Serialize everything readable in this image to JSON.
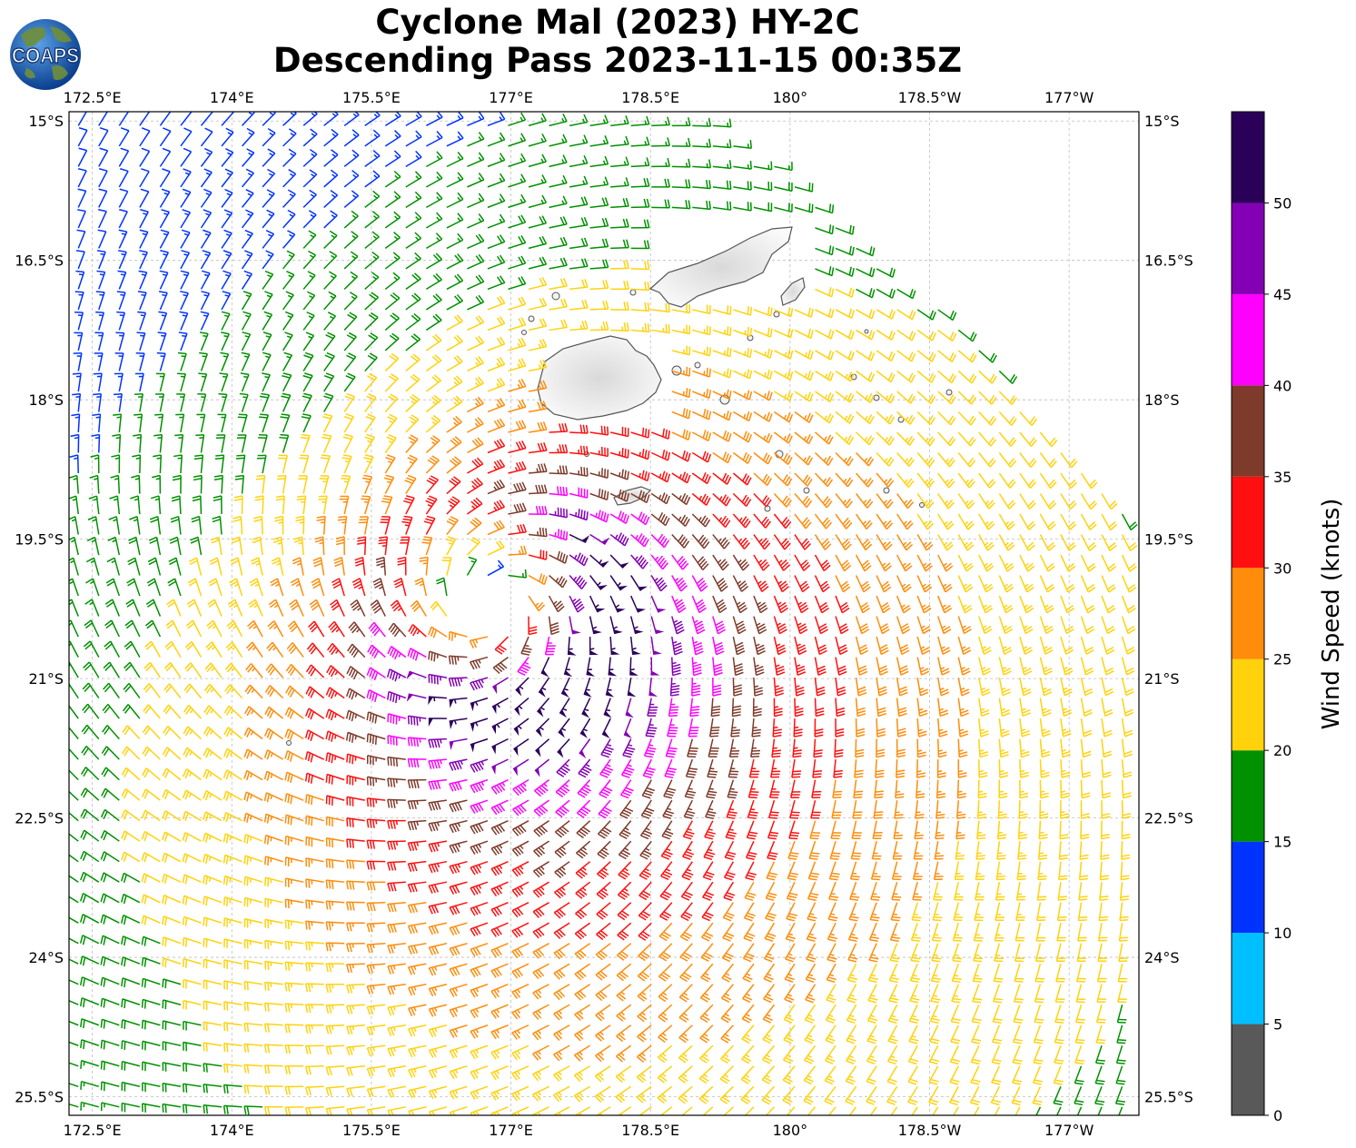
{
  "title": {
    "line1": "Cyclone Mal (2023) HY-2C",
    "line2": "Descending Pass 2023-11-15 00:35Z"
  },
  "logo": {
    "text": "COAPS",
    "icon": "globe-icon"
  },
  "map": {
    "extent": {
      "lon_min": 172.25,
      "lon_max": 183.75,
      "lat_min": -25.7,
      "lat_max": -14.9
    },
    "lon_ticks": [
      {
        "value": 172.5,
        "label": "172.5°E"
      },
      {
        "value": 174.0,
        "label": "174°E"
      },
      {
        "value": 175.5,
        "label": "175.5°E"
      },
      {
        "value": 177.0,
        "label": "177°E"
      },
      {
        "value": 178.5,
        "label": "178.5°E"
      },
      {
        "value": 180.0,
        "label": "180°"
      },
      {
        "value": 181.5,
        "label": "178.5°W"
      },
      {
        "value": 183.0,
        "label": "177°W"
      }
    ],
    "lat_ticks": [
      {
        "value": -15.0,
        "label": "15°S"
      },
      {
        "value": -16.5,
        "label": "16.5°S"
      },
      {
        "value": -18.0,
        "label": "18°S"
      },
      {
        "value": -19.5,
        "label": "19.5°S"
      },
      {
        "value": -21.0,
        "label": "21°S"
      },
      {
        "value": -22.5,
        "label": "22.5°S"
      },
      {
        "value": -24.0,
        "label": "24°S"
      },
      {
        "value": -25.5,
        "label": "25.5°S"
      }
    ],
    "grid": true,
    "storm_center": {
      "lon": 176.8,
      "lat": -20.2
    },
    "swath_east_edge": [
      {
        "lat": -15.0,
        "lon": 179.3
      },
      {
        "lat": -17.3,
        "lon": 181.9
      },
      {
        "lat": -18.7,
        "lon": 183.2
      },
      {
        "lat": -19.4,
        "lon": 183.75
      }
    ],
    "swath_west_edge": [
      {
        "lat": -15.0,
        "lon": 172.25
      },
      {
        "lat": -20.9,
        "lon": 172.25
      }
    ],
    "colors": {
      "land": "#f2f2f2",
      "coast": "#555555",
      "grid": "#bdbdbd"
    }
  },
  "colorbar": {
    "label": "Wind Speed (knots)",
    "bins": [
      {
        "min": 0,
        "max": 5,
        "color": "#595959"
      },
      {
        "min": 5,
        "max": 10,
        "color": "#00bfff"
      },
      {
        "min": 10,
        "max": 15,
        "color": "#0033ff"
      },
      {
        "min": 15,
        "max": 20,
        "color": "#009100"
      },
      {
        "min": 20,
        "max": 25,
        "color": "#ffd20c"
      },
      {
        "min": 25,
        "max": 30,
        "color": "#ff8c0a"
      },
      {
        "min": 30,
        "max": 35,
        "color": "#ff0f0f"
      },
      {
        "min": 35,
        "max": 40,
        "color": "#7e3a2a"
      },
      {
        "min": 40,
        "max": 45,
        "color": "#ff00ff"
      },
      {
        "min": 45,
        "max": 50,
        "color": "#8400b4"
      },
      {
        "min": 50,
        "max": 55,
        "color": "#2b0059"
      }
    ],
    "ticks": [
      {
        "value": 0,
        "label": "0"
      },
      {
        "value": 5,
        "label": "5"
      },
      {
        "value": 10,
        "label": "10"
      },
      {
        "value": 15,
        "label": "15"
      },
      {
        "value": 20,
        "label": "20"
      },
      {
        "value": 25,
        "label": "25"
      },
      {
        "value": 30,
        "label": "30"
      },
      {
        "value": 35,
        "label": "35"
      },
      {
        "value": 40,
        "label": "40"
      },
      {
        "value": 45,
        "label": "45"
      },
      {
        "value": 50,
        "label": "50"
      }
    ]
  }
}
